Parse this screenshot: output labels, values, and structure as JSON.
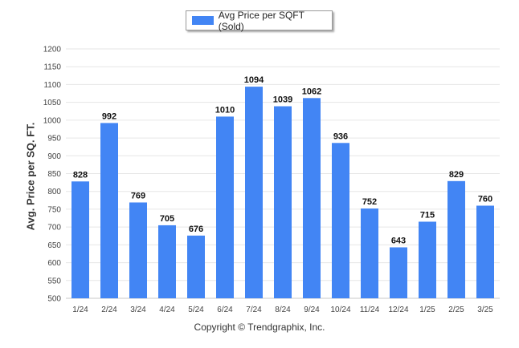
{
  "legend": {
    "label": "Avg Price per SQFT (Sold)"
  },
  "credit": "Copyright © Trendgraphix, Inc.",
  "chart_data": {
    "type": "bar",
    "categories": [
      "1/24",
      "2/24",
      "3/24",
      "4/24",
      "5/24",
      "6/24",
      "7/24",
      "8/24",
      "9/24",
      "10/24",
      "11/24",
      "12/24",
      "1/25",
      "2/25",
      "3/25"
    ],
    "series": [
      {
        "name": "Avg Price per SQFT (Sold)",
        "values": [
          828,
          992,
          769,
          705,
          676,
          1010,
          1094,
          1039,
          1062,
          936,
          752,
          643,
          715,
          829,
          760
        ]
      }
    ],
    "title": "",
    "xlabel": "",
    "ylabel": "Avg. Price per SQ. FT.",
    "ylim": [
      500,
      1200
    ],
    "yticks": [
      500,
      550,
      600,
      650,
      700,
      750,
      800,
      850,
      900,
      950,
      1000,
      1050,
      1100,
      1150,
      1200
    ],
    "grid": true,
    "legend_position": "top-center",
    "bar_color": "#4285f4"
  }
}
